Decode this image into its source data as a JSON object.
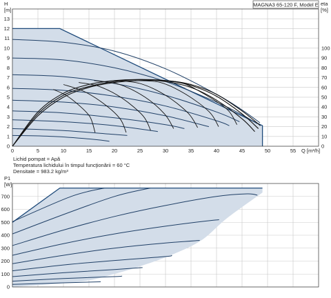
{
  "model_label": "MAGNA3 65-120 F, Model E",
  "info_lines": [
    "Lichid pompat = Apă",
    "Temperatura lichidului în timpul funcţionării = 60 °C",
    "Densitate = 983.2 kg/m³"
  ],
  "colors": {
    "region_fill": "#d3dde9",
    "curve": "#1f3f66",
    "envelope": "#1e4a7a",
    "efficiency": "#111111",
    "grid": "#c8c8c8"
  },
  "chart_data": [
    {
      "type": "line",
      "name": "head_efficiency",
      "xlabel": "Q [m³/h]",
      "ylabel": "[m]",
      "y2label": "eta [%]",
      "xlim": [
        0,
        60
      ],
      "ylim": [
        0,
        14
      ],
      "y2lim": [
        0,
        140
      ],
      "x_ticks": [
        0,
        5,
        10,
        15,
        20,
        25,
        30,
        35,
        40,
        45,
        50,
        55
      ],
      "y_ticks": [
        0,
        1,
        2,
        3,
        4,
        5,
        6,
        7,
        8,
        9,
        10,
        11,
        12,
        13
      ],
      "y2_ticks": [
        0,
        10,
        20,
        30,
        40,
        50,
        60,
        70,
        80,
        90,
        100
      ],
      "grid": true,
      "envelope": {
        "x": [
          0,
          9.3,
          49,
          49,
          0
        ],
        "y": [
          12,
          12,
          2.1,
          0,
          0
        ]
      },
      "head_curves": [
        {
          "x": [
            0,
            10,
            20,
            30,
            40,
            45,
            48.5
          ],
          "y": [
            10.9,
            10.6,
            9.7,
            7.9,
            5.3,
            3.7,
            2.4
          ]
        },
        {
          "x": [
            0,
            10,
            20,
            30,
            40,
            45,
            48
          ],
          "y": [
            9.0,
            8.8,
            8.0,
            6.6,
            4.5,
            3.2,
            2.3
          ]
        },
        {
          "x": [
            0,
            10,
            20,
            30,
            40,
            44.5
          ],
          "y": [
            7.3,
            7.1,
            6.4,
            5.2,
            3.5,
            2.5
          ]
        },
        {
          "x": [
            0,
            10,
            20,
            30,
            40,
            42.5
          ],
          "y": [
            5.9,
            5.7,
            5.1,
            4.1,
            2.6,
            2.1
          ]
        },
        {
          "x": [
            0,
            10,
            20,
            30,
            38.5
          ],
          "y": [
            4.7,
            4.5,
            4.0,
            3.1,
            2.0
          ]
        },
        {
          "x": [
            0,
            10,
            20,
            30,
            33.7
          ],
          "y": [
            3.6,
            3.4,
            2.9,
            2.2,
            1.8
          ]
        },
        {
          "x": [
            0,
            10,
            20,
            28.5
          ],
          "y": [
            2.7,
            2.5,
            2.1,
            1.5
          ]
        },
        {
          "x": [
            0,
            10,
            20,
            22.5
          ],
          "y": [
            1.8,
            1.6,
            1.2,
            1.1
          ]
        },
        {
          "x": [
            0,
            8,
            16,
            19
          ],
          "y": [
            1.1,
            1.0,
            0.7,
            0.5
          ]
        }
      ],
      "efficiency_curves": [
        {
          "x": [
            0,
            5,
            10,
            15,
            20,
            25,
            30,
            35,
            40,
            45,
            48.6
          ],
          "y": [
            0,
            31,
            50,
            60,
            65,
            67,
            67,
            63,
            53,
            36,
            21
          ]
        },
        {
          "x": [
            0,
            5,
            10,
            15,
            20,
            25,
            30,
            35,
            40,
            45,
            48.2
          ],
          "y": [
            0,
            33,
            52,
            61,
            66,
            68,
            67,
            62,
            51,
            33,
            18
          ]
        },
        {
          "x": [
            0,
            5,
            10,
            15,
            20,
            25,
            30,
            35,
            40,
            45,
            47.5
          ],
          "y": [
            0,
            35,
            54,
            63,
            67,
            68,
            66,
            60,
            47,
            28,
            15
          ]
        }
      ],
      "bep_arcs": [
        {
          "x": [
            8,
            10.5,
            13,
            15.2,
            16.2
          ],
          "y": [
            5.8,
            5.2,
            4.2,
            3.0,
            1.4
          ]
        },
        {
          "x": [
            10,
            14,
            18,
            21.1,
            22.3
          ],
          "y": [
            6.3,
            5.6,
            4.3,
            2.8,
            1.4
          ]
        },
        {
          "x": [
            13,
            17,
            21.5,
            25.6,
            27.1
          ],
          "y": [
            6.5,
            6.1,
            4.9,
            3.1,
            1.6
          ]
        },
        {
          "x": [
            16,
            21,
            26,
            29.8,
            31.6
          ],
          "y": [
            6.7,
            6.3,
            5.0,
            3.3,
            1.8
          ]
        },
        {
          "x": [
            20,
            25,
            30,
            34.4,
            36.3
          ],
          "y": [
            6.7,
            6.4,
            5.2,
            3.4,
            1.9
          ]
        },
        {
          "x": [
            24,
            29,
            34,
            38.6,
            40.4
          ],
          "y": [
            6.7,
            6.5,
            5.3,
            3.5,
            2.0
          ]
        },
        {
          "x": [
            28,
            33,
            38,
            42.2,
            44
          ],
          "y": [
            6.7,
            6.5,
            5.2,
            3.7,
            2.2
          ]
        }
      ]
    },
    {
      "type": "line",
      "name": "power",
      "xlabel": "",
      "ylabel": "[W]",
      "title": "P1",
      "xlim": [
        0,
        60
      ],
      "ylim": [
        0,
        800
      ],
      "y_ticks": [
        0,
        100,
        200,
        300,
        400,
        500,
        600,
        700
      ],
      "grid": true,
      "envelope": {
        "x": [
          0,
          9.3,
          49,
          49,
          42,
          37,
          31,
          25,
          19,
          13,
          0
        ],
        "y": [
          500,
          765,
          765,
          730,
          530,
          360,
          245,
          160,
          90,
          40,
          0
        ]
      },
      "power_curves": [
        {
          "x": [
            0,
            11.5,
            18
          ],
          "y": [
            505,
            700,
            765
          ]
        },
        {
          "x": [
            0,
            10,
            20,
            27
          ],
          "y": [
            410,
            560,
            700,
            765
          ]
        },
        {
          "x": [
            0,
            10,
            20,
            30,
            40,
            46,
            48
          ],
          "y": [
            320,
            440,
            545,
            630,
            700,
            720,
            710
          ]
        },
        {
          "x": [
            0,
            10,
            20,
            30,
            38,
            40.5
          ],
          "y": [
            245,
            335,
            410,
            470,
            510,
            520
          ]
        },
        {
          "x": [
            0,
            10,
            20,
            30,
            36.7
          ],
          "y": [
            180,
            245,
            300,
            340,
            360
          ]
        },
        {
          "x": [
            0,
            10,
            20,
            30,
            31.2
          ],
          "y": [
            125,
            170,
            205,
            235,
            245
          ]
        },
        {
          "x": [
            0,
            10,
            20,
            25.5
          ],
          "y": [
            80,
            110,
            135,
            150
          ]
        },
        {
          "x": [
            0,
            10,
            20,
            21.5
          ],
          "y": [
            45,
            65,
            80,
            85
          ]
        },
        {
          "x": [
            0,
            10,
            17.3
          ],
          "y": [
            20,
            32,
            40
          ]
        }
      ]
    }
  ]
}
